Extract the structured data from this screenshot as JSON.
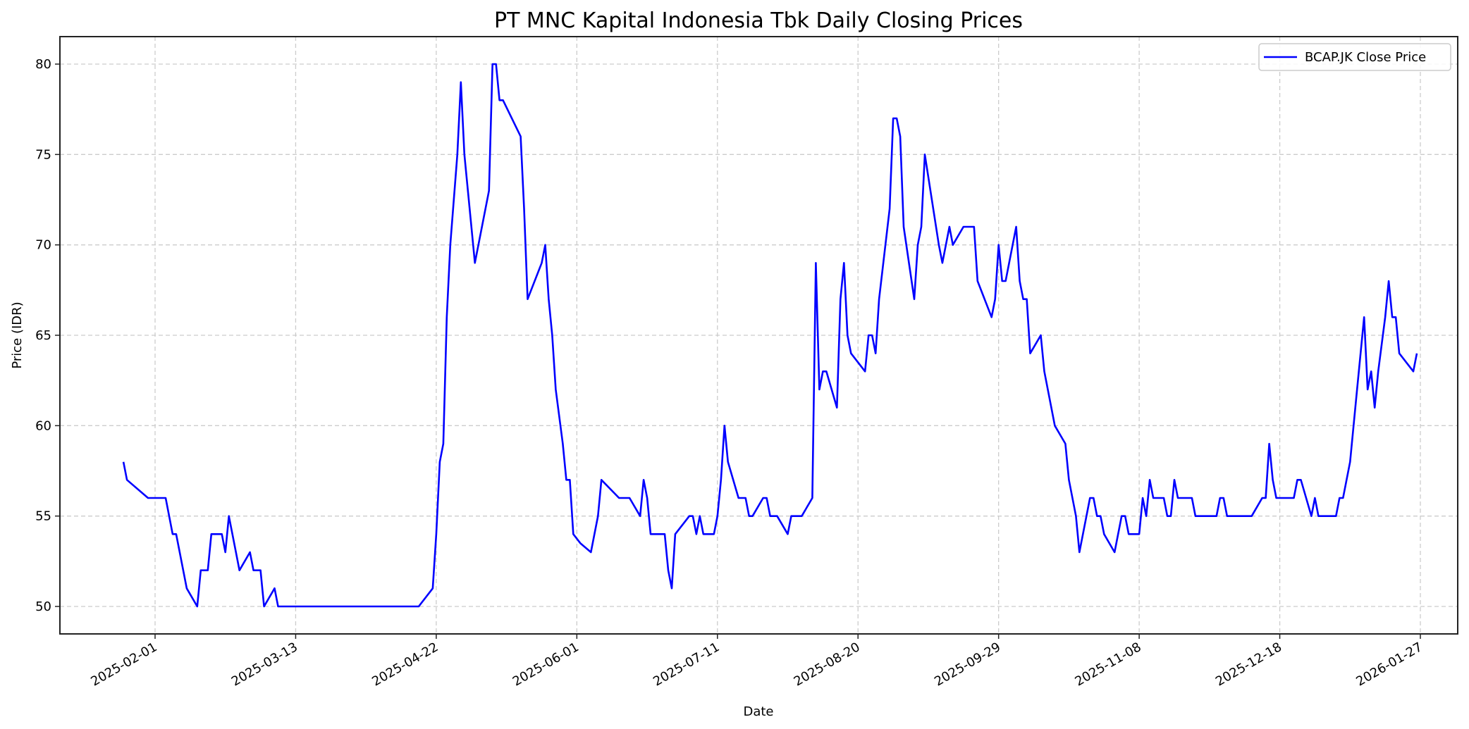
{
  "chart_data": {
    "type": "line",
    "title": "PT MNC Kapital Indonesia Tbk Daily Closing Prices",
    "xlabel": "Date",
    "ylabel": "Price (IDR)",
    "ylim": [
      48.5,
      81.5
    ],
    "yticks": [
      50,
      55,
      60,
      65,
      70,
      75,
      80
    ],
    "xticks": [
      "2025-02-01",
      "2025-03-13",
      "2025-04-22",
      "2025-06-01",
      "2025-07-11",
      "2025-08-20",
      "2025-09-29",
      "2025-11-08",
      "2025-12-18",
      "2026-01-27"
    ],
    "grid": true,
    "legend_position": "upper right",
    "series": [
      {
        "name": "BCAP.JK Close Price",
        "color": "#0000ff",
        "points": [
          [
            "2025-01-23",
            58
          ],
          [
            "2025-01-24",
            57
          ],
          [
            "2025-01-30",
            56
          ],
          [
            "2025-02-03",
            56
          ],
          [
            "2025-02-04",
            56
          ],
          [
            "2025-02-06",
            54
          ],
          [
            "2025-02-07",
            54
          ],
          [
            "2025-02-10",
            51
          ],
          [
            "2025-02-13",
            50
          ],
          [
            "2025-02-14",
            52
          ],
          [
            "2025-02-16",
            52
          ],
          [
            "2025-02-17",
            54
          ],
          [
            "2025-02-20",
            54
          ],
          [
            "2025-02-21",
            53
          ],
          [
            "2025-02-22",
            55
          ],
          [
            "2025-02-24",
            53
          ],
          [
            "2025-02-25",
            52
          ],
          [
            "2025-02-28",
            53
          ],
          [
            "2025-03-01",
            52
          ],
          [
            "2025-03-03",
            52
          ],
          [
            "2025-03-04",
            50
          ],
          [
            "2025-03-07",
            51
          ],
          [
            "2025-03-08",
            50
          ],
          [
            "2025-04-17",
            50
          ],
          [
            "2025-04-21",
            51
          ],
          [
            "2025-04-22",
            54
          ],
          [
            "2025-04-23",
            58
          ],
          [
            "2025-04-24",
            59
          ],
          [
            "2025-04-25",
            66
          ],
          [
            "2025-04-26",
            70
          ],
          [
            "2025-04-28",
            75
          ],
          [
            "2025-04-29",
            79
          ],
          [
            "2025-04-30",
            75
          ],
          [
            "2025-05-03",
            69
          ],
          [
            "2025-05-07",
            73
          ],
          [
            "2025-05-08",
            80
          ],
          [
            "2025-05-09",
            80
          ],
          [
            "2025-05-10",
            78
          ],
          [
            "2025-05-11",
            78
          ],
          [
            "2025-05-16",
            76
          ],
          [
            "2025-05-17",
            72
          ],
          [
            "2025-05-18",
            67
          ],
          [
            "2025-05-22",
            69
          ],
          [
            "2025-05-23",
            70
          ],
          [
            "2025-05-24",
            67
          ],
          [
            "2025-05-25",
            65
          ],
          [
            "2025-05-26",
            62
          ],
          [
            "2025-05-28",
            59
          ],
          [
            "2025-05-29",
            57
          ],
          [
            "2025-05-30",
            57
          ],
          [
            "2025-05-31",
            54
          ],
          [
            "2025-06-02",
            53.5
          ],
          [
            "2025-06-05",
            53
          ],
          [
            "2025-06-07",
            55
          ],
          [
            "2025-06-08",
            57
          ],
          [
            "2025-06-13",
            56
          ],
          [
            "2025-06-16",
            56
          ],
          [
            "2025-06-19",
            55
          ],
          [
            "2025-06-20",
            57
          ],
          [
            "2025-06-21",
            56
          ],
          [
            "2025-06-22",
            54
          ],
          [
            "2025-06-26",
            54
          ],
          [
            "2025-06-27",
            52
          ],
          [
            "2025-06-28",
            51
          ],
          [
            "2025-06-29",
            54
          ],
          [
            "2025-07-03",
            55
          ],
          [
            "2025-07-04",
            55
          ],
          [
            "2025-07-05",
            54
          ],
          [
            "2025-07-06",
            55
          ],
          [
            "2025-07-07",
            54
          ],
          [
            "2025-07-10",
            54
          ],
          [
            "2025-07-11",
            55
          ],
          [
            "2025-07-12",
            57
          ],
          [
            "2025-07-13",
            60
          ],
          [
            "2025-07-14",
            58
          ],
          [
            "2025-07-17",
            56
          ],
          [
            "2025-07-19",
            56
          ],
          [
            "2025-07-20",
            55
          ],
          [
            "2025-07-21",
            55
          ],
          [
            "2025-07-24",
            56
          ],
          [
            "2025-07-25",
            56
          ],
          [
            "2025-07-26",
            55
          ],
          [
            "2025-07-28",
            55
          ],
          [
            "2025-07-31",
            54
          ],
          [
            "2025-08-01",
            55
          ],
          [
            "2025-08-04",
            55
          ],
          [
            "2025-08-07",
            56
          ],
          [
            "2025-08-08",
            69
          ],
          [
            "2025-08-09",
            62
          ],
          [
            "2025-08-10",
            63
          ],
          [
            "2025-08-11",
            63
          ],
          [
            "2025-08-14",
            61
          ],
          [
            "2025-08-15",
            67
          ],
          [
            "2025-08-16",
            69
          ],
          [
            "2025-08-17",
            65
          ],
          [
            "2025-08-18",
            64
          ],
          [
            "2025-08-22",
            63
          ],
          [
            "2025-08-23",
            65
          ],
          [
            "2025-08-24",
            65
          ],
          [
            "2025-08-25",
            64
          ],
          [
            "2025-08-26",
            67
          ],
          [
            "2025-08-29",
            72
          ],
          [
            "2025-08-30",
            77
          ],
          [
            "2025-08-31",
            77
          ],
          [
            "2025-09-01",
            76
          ],
          [
            "2025-09-02",
            71
          ],
          [
            "2025-09-05",
            67
          ],
          [
            "2025-09-06",
            70
          ],
          [
            "2025-09-07",
            71
          ],
          [
            "2025-09-08",
            75
          ],
          [
            "2025-09-12",
            70
          ],
          [
            "2025-09-13",
            69
          ],
          [
            "2025-09-15",
            71
          ],
          [
            "2025-09-16",
            70
          ],
          [
            "2025-09-19",
            71
          ],
          [
            "2025-09-22",
            71
          ],
          [
            "2025-09-23",
            68
          ],
          [
            "2025-09-27",
            66
          ],
          [
            "2025-09-28",
            67
          ],
          [
            "2025-09-29",
            70
          ],
          [
            "2025-09-30",
            68
          ],
          [
            "2025-10-01",
            68
          ],
          [
            "2025-10-04",
            71
          ],
          [
            "2025-10-05",
            68
          ],
          [
            "2025-10-06",
            67
          ],
          [
            "2025-10-07",
            67
          ],
          [
            "2025-10-08",
            64
          ],
          [
            "2025-10-11",
            65
          ],
          [
            "2025-10-12",
            63
          ],
          [
            "2025-10-15",
            60
          ],
          [
            "2025-10-18",
            59
          ],
          [
            "2025-10-19",
            57
          ],
          [
            "2025-10-21",
            55
          ],
          [
            "2025-10-22",
            53
          ],
          [
            "2025-10-25",
            56
          ],
          [
            "2025-10-26",
            56
          ],
          [
            "2025-10-27",
            55
          ],
          [
            "2025-10-28",
            55
          ],
          [
            "2025-10-29",
            54
          ],
          [
            "2025-11-01",
            53
          ],
          [
            "2025-11-03",
            55
          ],
          [
            "2025-11-04",
            55
          ],
          [
            "2025-11-05",
            54
          ],
          [
            "2025-11-08",
            54
          ],
          [
            "2025-11-09",
            56
          ],
          [
            "2025-11-10",
            55
          ],
          [
            "2025-11-11",
            57
          ],
          [
            "2025-11-12",
            56
          ],
          [
            "2025-11-15",
            56
          ],
          [
            "2025-11-16",
            55
          ],
          [
            "2025-11-17",
            55
          ],
          [
            "2025-11-18",
            57
          ],
          [
            "2025-11-19",
            56
          ],
          [
            "2025-11-23",
            56
          ],
          [
            "2025-11-24",
            55
          ],
          [
            "2025-11-30",
            55
          ],
          [
            "2025-12-01",
            56
          ],
          [
            "2025-12-02",
            56
          ],
          [
            "2025-12-03",
            55
          ],
          [
            "2025-12-10",
            55
          ],
          [
            "2025-12-13",
            56
          ],
          [
            "2025-12-14",
            56
          ],
          [
            "2025-12-15",
            59
          ],
          [
            "2025-12-16",
            57
          ],
          [
            "2025-12-17",
            56
          ],
          [
            "2025-12-22",
            56
          ],
          [
            "2025-12-23",
            57
          ],
          [
            "2025-12-24",
            57
          ],
          [
            "2025-12-27",
            55
          ],
          [
            "2025-12-28",
            56
          ],
          [
            "2025-12-29",
            55
          ],
          [
            "2026-01-03",
            55
          ],
          [
            "2026-01-04",
            56
          ],
          [
            "2026-01-05",
            56
          ],
          [
            "2026-01-07",
            58
          ],
          [
            "2026-01-09",
            62
          ],
          [
            "2026-01-11",
            66
          ],
          [
            "2026-01-12",
            62
          ],
          [
            "2026-01-13",
            63
          ],
          [
            "2026-01-14",
            61
          ],
          [
            "2026-01-15",
            63
          ],
          [
            "2026-01-17",
            66
          ],
          [
            "2026-01-18",
            68
          ],
          [
            "2026-01-19",
            66
          ],
          [
            "2026-01-20",
            66
          ],
          [
            "2026-01-21",
            64
          ],
          [
            "2026-01-25",
            63
          ],
          [
            "2026-01-26",
            64
          ]
        ]
      }
    ]
  },
  "legend": {
    "items": [
      {
        "label": "BCAP.JK Close Price",
        "color": "#0000ff"
      }
    ]
  }
}
